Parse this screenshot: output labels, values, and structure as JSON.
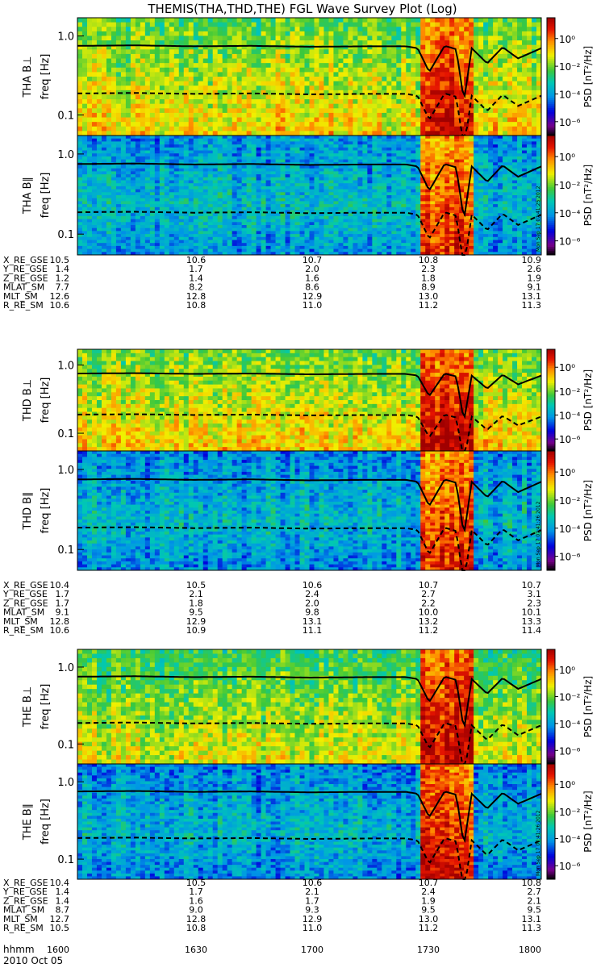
{
  "title": "THEMIS(THA,THD,THE) FGL Wave Survey Plot (Log)",
  "colorbar": {
    "label": "PSD [nT²/Hz]",
    "ticks": [
      "10⁰",
      "10⁻²",
      "10⁻⁴",
      "10⁻⁶"
    ],
    "tick_exponents": [
      0,
      -2,
      -4,
      -6
    ],
    "range_exponents": [
      -7,
      1.5
    ]
  },
  "date_label": "2010 Oct 05",
  "time_label": "hhmm",
  "time_ticks": [
    "1600",
    "1630",
    "1700",
    "1730",
    "1800"
  ],
  "stamp_texts": [
    "Mon Sep 17 07:41:25 2012",
    "Mon Sep 17 07:41:26 2012",
    "Mon Sep 17 07:41:26 2012"
  ],
  "panel_labels": [
    "THA B⊥",
    "THA B∥",
    "THD B⊥",
    "THD B∥",
    "THE B⊥",
    "THE B∥"
  ],
  "freq_axis": {
    "label": "freq [Hz]",
    "ticks": [
      "1.0",
      "0.1"
    ],
    "tick_values": [
      1.0,
      0.1
    ],
    "range": [
      0.055,
      1.7
    ],
    "scale": "log"
  },
  "ephemeris": [
    {
      "probe": "THA",
      "rows": [
        {
          "name": "X_RE_GSE",
          "values": [
            "10.5",
            "10.6",
            "10.7",
            "10.8",
            "10.9"
          ]
        },
        {
          "name": "Y_RE_GSE",
          "values": [
            "1.4",
            "1.7",
            "2.0",
            "2.3",
            "2.6"
          ]
        },
        {
          "name": "Z_RE_GSE",
          "values": [
            "1.2",
            "1.4",
            "1.6",
            "1.8",
            "1.9"
          ]
        },
        {
          "name": "MLAT_SM",
          "values": [
            "7.7",
            "8.2",
            "8.6",
            "8.9",
            "9.1"
          ]
        },
        {
          "name": "MLT_SM",
          "values": [
            "12.6",
            "12.8",
            "12.9",
            "13.0",
            "13.1"
          ]
        },
        {
          "name": "R_RE_SM",
          "values": [
            "10.6",
            "10.8",
            "11.0",
            "11.2",
            "11.3"
          ]
        }
      ]
    },
    {
      "probe": "THD",
      "rows": [
        {
          "name": "X_RE_GSE",
          "values": [
            "10.4",
            "10.5",
            "10.6",
            "10.7",
            "10.7"
          ]
        },
        {
          "name": "Y_RE_GSE",
          "values": [
            "1.7",
            "2.1",
            "2.4",
            "2.7",
            "3.1"
          ]
        },
        {
          "name": "Z_RE_GSE",
          "values": [
            "1.7",
            "1.8",
            "2.0",
            "2.2",
            "2.3"
          ]
        },
        {
          "name": "MLAT_SM",
          "values": [
            "9.1",
            "9.5",
            "9.8",
            "10.0",
            "10.1"
          ]
        },
        {
          "name": "MLT_SM",
          "values": [
            "12.8",
            "12.9",
            "13.1",
            "13.2",
            "13.3"
          ]
        },
        {
          "name": "R_RE_SM",
          "values": [
            "10.6",
            "10.9",
            "11.1",
            "11.2",
            "11.4"
          ]
        }
      ]
    },
    {
      "probe": "THE",
      "rows": [
        {
          "name": "X_RE_GSE",
          "values": [
            "10.4",
            "10.5",
            "10.6",
            "10.7",
            "10.8"
          ]
        },
        {
          "name": "Y_RE_GSE",
          "values": [
            "1.4",
            "1.7",
            "2.1",
            "2.4",
            "2.7"
          ]
        },
        {
          "name": "Z_RE_GSE",
          "values": [
            "1.4",
            "1.6",
            "1.7",
            "1.9",
            "2.1"
          ]
        },
        {
          "name": "MLAT_SM",
          "values": [
            "8.7",
            "9.0",
            "9.3",
            "9.5",
            "9.5"
          ]
        },
        {
          "name": "MLT_SM",
          "values": [
            "12.7",
            "12.8",
            "12.9",
            "13.0",
            "13.1"
          ]
        },
        {
          "name": "R_RE_SM",
          "values": [
            "10.5",
            "10.8",
            "11.0",
            "11.2",
            "11.3"
          ]
        }
      ]
    }
  ],
  "chart_data": {
    "type": "heatmap",
    "title": "THEMIS(THA,THD,THE) FGL Wave Survey Plot (Log)",
    "xlabel": "hhmm",
    "ylabel": "freq [Hz]",
    "x_ticks": [
      "1600",
      "1630",
      "1700",
      "1730",
      "1800"
    ],
    "xlim": [
      "1600",
      "1800"
    ],
    "ylim": [
      0.055,
      1.7
    ],
    "yscale": "log",
    "colorbar_label": "PSD [nT²/Hz]",
    "colorbar_log_range": [
      -7,
      1.5
    ],
    "panels": [
      {
        "name": "THA B⊥",
        "probe": "THA",
        "component": "perp",
        "background_log_psd": -1.6,
        "event_log_psd": 0.4
      },
      {
        "name": "THA B∥",
        "probe": "THA",
        "component": "par",
        "background_log_psd": -3.6,
        "event_log_psd": 0.1
      },
      {
        "name": "THD B⊥",
        "probe": "THD",
        "component": "perp",
        "background_log_psd": -1.5,
        "event_log_psd": 0.6
      },
      {
        "name": "THD B∥",
        "probe": "THD",
        "component": "par",
        "background_log_psd": -3.6,
        "event_log_psd": 0.2
      },
      {
        "name": "THE B⊥",
        "probe": "THE",
        "component": "perp",
        "background_log_psd": -1.9,
        "event_log_psd": 0.7
      },
      {
        "name": "THE B∥",
        "probe": "THE",
        "component": "par",
        "background_log_psd": -3.7,
        "event_log_psd": 0.4
      }
    ],
    "event_interval": [
      "1729",
      "1742"
    ],
    "gyrofrequency_curves": {
      "solid_line_x": [
        "1600",
        "1615",
        "1630",
        "1645",
        "1700",
        "1715",
        "1725",
        "1728",
        "1731",
        "1735",
        "1738",
        "1740",
        "1742",
        "1746",
        "1750",
        "1754",
        "1800"
      ],
      "solid_line_hz": [
        0.75,
        0.76,
        0.74,
        0.75,
        0.73,
        0.74,
        0.74,
        0.7,
        0.35,
        0.75,
        0.68,
        0.15,
        0.7,
        0.45,
        0.72,
        0.52,
        0.7
      ],
      "dashed_line_hz_fraction_of_solid": 0.25
    }
  }
}
